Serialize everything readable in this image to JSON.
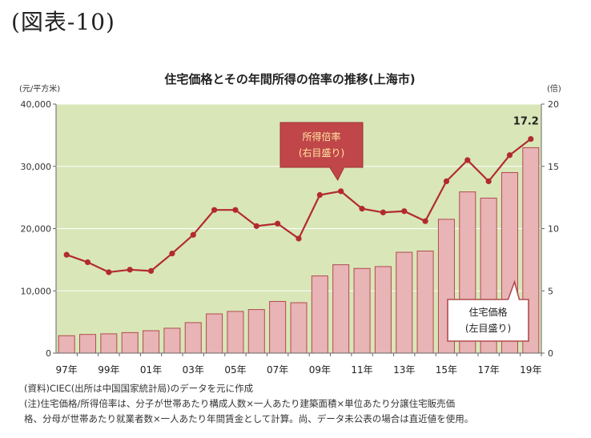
{
  "figure_label": "(図表-10)",
  "chart_data": {
    "type": "bar",
    "title": "住宅価格とその年間所得の倍率の推移(上海市)",
    "ylabel_left": "(元/平方米)",
    "ylabel_right": "(倍)",
    "ylim_left": [
      0,
      40000
    ],
    "ylim_right": [
      0,
      20
    ],
    "yticks_left": [
      "0",
      "10,000",
      "20,000",
      "30,000",
      "40,000"
    ],
    "yticks_right": [
      "0",
      "5",
      "10",
      "15",
      "20"
    ],
    "years": [
      1997,
      1998,
      1999,
      2000,
      2001,
      2002,
      2003,
      2004,
      2005,
      2006,
      2007,
      2008,
      2009,
      2010,
      2011,
      2012,
      2013,
      2014,
      2015,
      2016,
      2017,
      2018,
      2019
    ],
    "xtick_labels": [
      "97年",
      "99年",
      "01年",
      "03年",
      "05年",
      "07年",
      "09年",
      "11年",
      "13年",
      "15年",
      "17年",
      "19年"
    ],
    "series": [
      {
        "name": "住宅価格(左目盛り)",
        "kind": "bar",
        "axis": "left",
        "values": [
          2800,
          3000,
          3100,
          3300,
          3600,
          4000,
          4900,
          6300,
          6700,
          7000,
          8300,
          8100,
          12400,
          14200,
          13600,
          13900,
          16200,
          16400,
          21500,
          25900,
          24900,
          29000,
          33000
        ]
      },
      {
        "name": "所得倍率(右目盛り)",
        "kind": "line",
        "axis": "right",
        "values": [
          7.9,
          7.3,
          6.5,
          6.7,
          6.6,
          8.0,
          9.5,
          11.5,
          11.5,
          10.2,
          10.4,
          9.2,
          12.7,
          13.0,
          11.6,
          11.3,
          11.4,
          10.6,
          13.8,
          15.5,
          13.8,
          15.9,
          17.2
        ]
      }
    ],
    "data_labels": [
      {
        "series": "所得倍率(右目盛り)",
        "year": 2019,
        "text": "17.2"
      }
    ],
    "callouts": {
      "line_line1": "所得倍率",
      "line_line2": "(右目盛り)",
      "bar_line1": "住宅価格",
      "bar_line2": "(左目盛り)"
    },
    "grid": true,
    "colors": {
      "plot_bg": "#d9e6b8",
      "bar_fill": "#e8b4b6",
      "bar_stroke": "#b14b4f",
      "line": "#b22a30",
      "callout_fill": "#c0464a",
      "callout_text": "#ffe6a0",
      "bar_callout_border": "#b14b4f"
    }
  },
  "notes": [
    "(資料)CIEC(出所は中国国家統計局)のデータを元に作成",
    "(注)住宅価格/所得倍率は、分子が世帯あたり構成人数×一人あたり建築面積×単位あたり分譲住宅販売価",
    "格、分母が世帯あたり就業者数×一人あたり年間賃金として計算。尚、データ未公表の場合は直近値を使用。"
  ]
}
